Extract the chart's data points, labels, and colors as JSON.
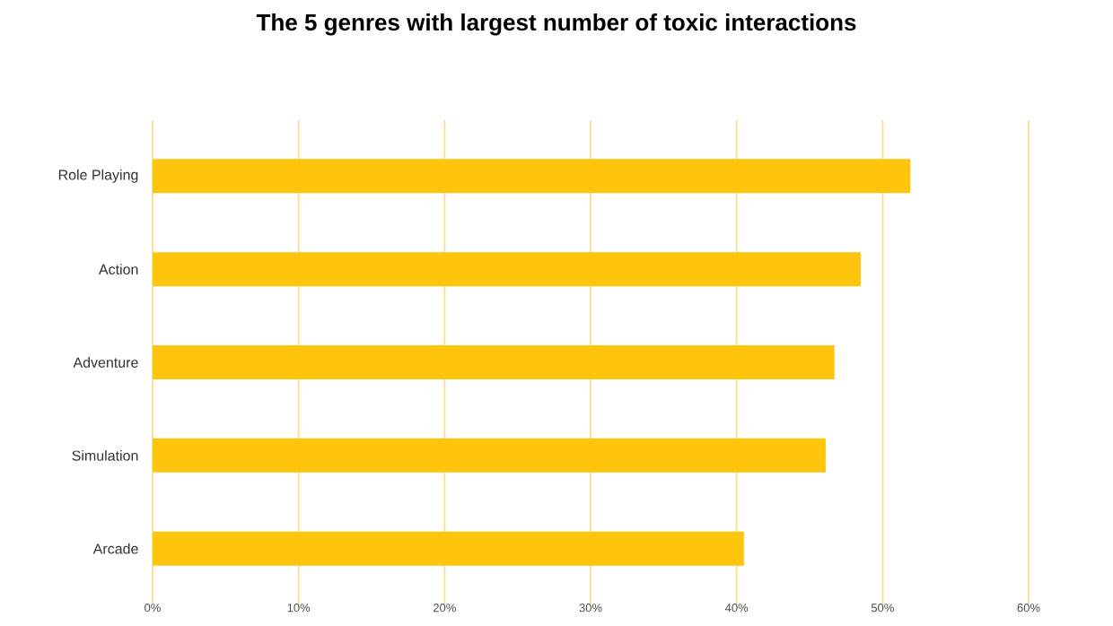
{
  "chart_data": {
    "type": "bar",
    "orientation": "horizontal",
    "title": "The 5 genres with largest number of toxic interactions",
    "categories": [
      "Role Playing",
      "Action",
      "Adventure",
      "Simulation",
      "Arcade"
    ],
    "values": [
      51.9,
      48.5,
      46.7,
      46.1,
      40.5
    ],
    "color": "#ffc50d",
    "xlim": [
      0,
      60
    ],
    "xticks": [
      {
        "value": 0,
        "label": "0%"
      },
      {
        "value": 10,
        "label": "10%"
      },
      {
        "value": 20,
        "label": "20%"
      },
      {
        "value": 30,
        "label": "30%"
      },
      {
        "value": 40,
        "label": "40%"
      },
      {
        "value": 50,
        "label": "50%"
      },
      {
        "value": 60,
        "label": "60%"
      }
    ],
    "grid": "x"
  }
}
